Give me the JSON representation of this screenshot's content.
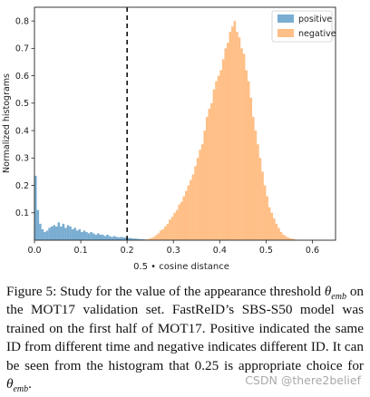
{
  "chart_data": {
    "type": "bar",
    "xlabel": "0.5 • cosine distance",
    "ylabel": "Normalized histograms",
    "xlim": [
      0.0,
      0.65
    ],
    "ylim": [
      0.0,
      0.85
    ],
    "xticks": [
      "0.0",
      "0.1",
      "0.2",
      "0.3",
      "0.4",
      "0.5",
      "0.6"
    ],
    "yticks": [
      "0.1",
      "0.2",
      "0.3",
      "0.4",
      "0.5",
      "0.6",
      "0.7",
      "0.8"
    ],
    "bin_width": 0.005,
    "threshold_line": 0.2,
    "legend_position": "top-right",
    "series": [
      {
        "name": "positive",
        "color": "#1f77b4",
        "x_start": 0.0,
        "values": [
          0.235,
          0.11,
          0.06,
          0.04,
          0.03,
          0.035,
          0.045,
          0.05,
          0.055,
          0.05,
          0.065,
          0.05,
          0.06,
          0.045,
          0.055,
          0.05,
          0.04,
          0.045,
          0.035,
          0.04,
          0.03,
          0.035,
          0.03,
          0.025,
          0.03,
          0.025,
          0.02,
          0.025,
          0.02,
          0.02,
          0.015,
          0.02,
          0.015,
          0.012,
          0.015,
          0.012,
          0.01,
          0.012,
          0.01,
          0.01,
          0.008,
          0.008,
          0.006,
          0.006,
          0.005,
          0.004,
          0.004,
          0.003
        ]
      },
      {
        "name": "negative",
        "color": "#ffbb78",
        "x_start": 0.24,
        "values": [
          0.003,
          0.005,
          0.008,
          0.012,
          0.018,
          0.025,
          0.035,
          0.04,
          0.05,
          0.06,
          0.075,
          0.085,
          0.1,
          0.11,
          0.13,
          0.14,
          0.16,
          0.18,
          0.2,
          0.22,
          0.24,
          0.27,
          0.3,
          0.33,
          0.35,
          0.4,
          0.45,
          0.48,
          0.5,
          0.55,
          0.58,
          0.6,
          0.62,
          0.66,
          0.7,
          0.72,
          0.76,
          0.78,
          0.8,
          0.76,
          0.74,
          0.7,
          0.68,
          0.62,
          0.58,
          0.52,
          0.45,
          0.4,
          0.35,
          0.3,
          0.25,
          0.2,
          0.16,
          0.12,
          0.1,
          0.08,
          0.06,
          0.045,
          0.03,
          0.02,
          0.015,
          0.01,
          0.007,
          0.005,
          0.003
        ]
      }
    ]
  },
  "caption": {
    "lead": "Figure 5: Study for the value of the appearance threshold ",
    "theta": "θ",
    "sub_emb": "emb",
    "rest": " on the MOT17 validation set.  FastReID’s SBS-S50 model was trained on the first half of MOT17. Positive indicated the same ID from different time and negative indicates different ID. It can be seen from the histogram that 0.25 is appropriate choice for ",
    "end": "."
  },
  "watermark": "CSDN @there2belief"
}
